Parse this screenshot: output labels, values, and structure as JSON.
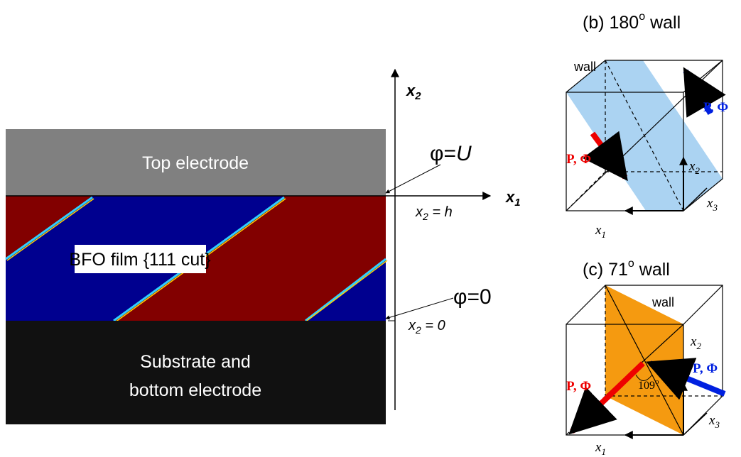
{
  "layers": {
    "top": "Top electrode",
    "film": "BFO film {111 cut}",
    "substrate": [
      "Substrate and",
      "bottom electrode"
    ]
  },
  "axes": {
    "vertical": {
      "base": "x",
      "sub": "2"
    },
    "horizontal": {
      "base": "x",
      "sub": "1"
    }
  },
  "boundaries": {
    "top": {
      "potential": {
        "symbol": "φ=",
        "value": "U"
      },
      "position": {
        "base": "x",
        "sub": "2",
        "rest": " = h"
      }
    },
    "bottom": {
      "potential": "φ=0",
      "position": {
        "base": "x",
        "sub": "2",
        "rest": " = 0"
      }
    }
  },
  "panel_b": {
    "title": {
      "prefix": "(b) 180",
      "sup": "o",
      "suffix": "  wall"
    },
    "wall": "wall",
    "polarization": [
      "P, Φ",
      "P, Φ"
    ],
    "axes": [
      {
        "base": "x",
        "sub": "1"
      },
      {
        "base": "x",
        "sub": "2"
      },
      {
        "base": "x",
        "sub": "3"
      }
    ]
  },
  "panel_c": {
    "title": {
      "prefix": "(c) 71",
      "sup": "o",
      "suffix": "  wall"
    },
    "wall": "wall",
    "polarization": [
      "P, Φ",
      "P, Φ"
    ],
    "angle": {
      "base": "109",
      "sup": "o"
    },
    "axes": [
      {
        "base": "x",
        "sub": "1"
      },
      {
        "base": "x",
        "sub": "2"
      },
      {
        "base": "x",
        "sub": "3"
      }
    ]
  }
}
